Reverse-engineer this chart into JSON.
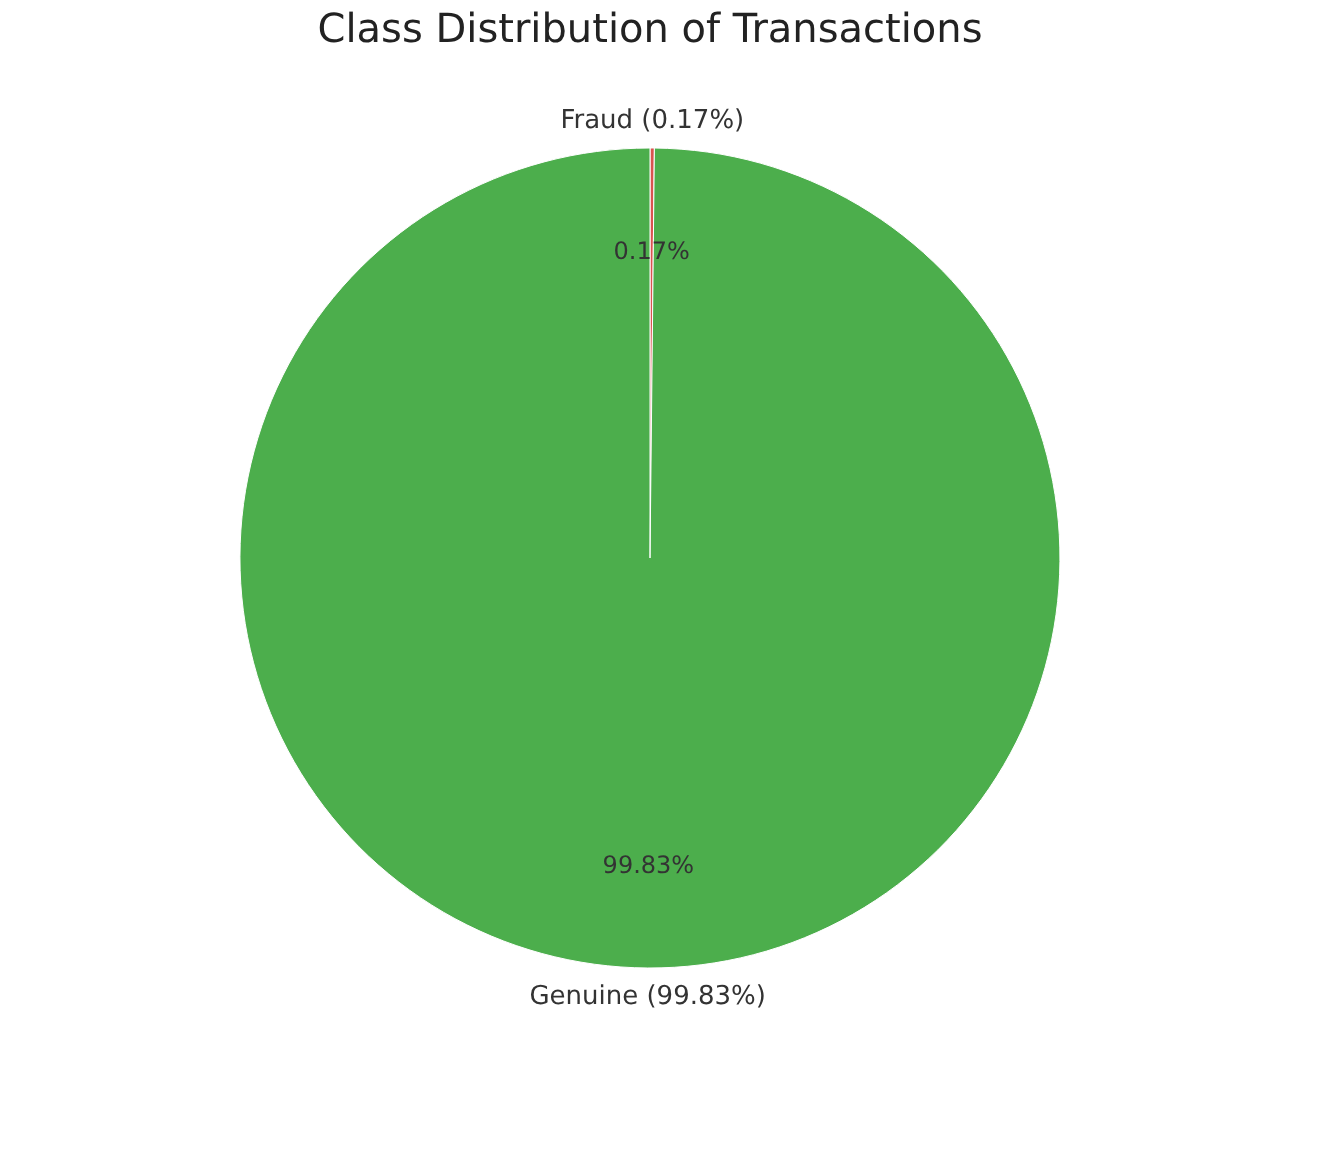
{
  "chart_data": {
    "type": "pie",
    "title": "Class Distribution of Transactions",
    "categories": [
      "Fraud (0.17%)",
      "Genuine (99.83%)"
    ],
    "values": [
      0.17,
      99.83
    ],
    "colors": [
      "#d9534f",
      "#4cae4c"
    ],
    "value_labels": [
      "0.17%",
      "99.83%"
    ],
    "legend": false
  }
}
